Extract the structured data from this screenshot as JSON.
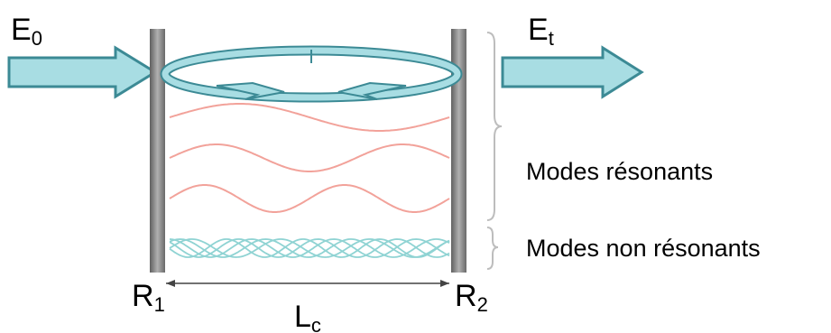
{
  "labels": {
    "input_field": "E",
    "input_sub": "0",
    "output_field": "E",
    "output_sub": "t",
    "mirror_left": "R",
    "mirror_left_sub": "1",
    "mirror_right": "R",
    "mirror_right_sub": "2",
    "length": "L",
    "length_sub": "c",
    "resonant_modes": "Modes résonants",
    "nonresonant_modes": "Modes non résonants"
  },
  "colors": {
    "arrow_fill": "#a8dde3",
    "arrow_stroke": "#3c8a95",
    "mirror": "#8a8a8a",
    "resonant_wave": "#f2a29a",
    "nonresonant_wave": "#8fd3d3",
    "brace": "#bdbdbd"
  },
  "resonant_modes_half_wavelengths": [
    2,
    3,
    4
  ]
}
